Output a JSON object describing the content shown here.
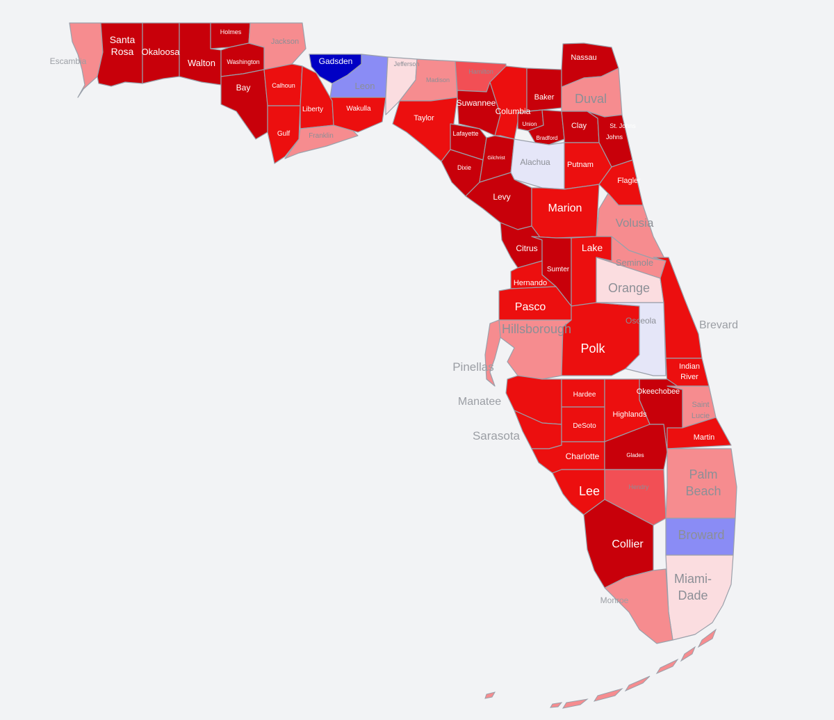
{
  "colors": {
    "background": "#f2f3f5",
    "dark_red": "#c8000a",
    "red": "#ec0f0f",
    "medium_red": "#f24f55",
    "light_red": "#f68c8f",
    "pale_red": "#fbdde0",
    "pale_blue": "#e5e6f8",
    "light_blue": "#8a8cf5",
    "dark_blue": "#0000c4",
    "label_on_dark": "#ffffff",
    "label_on_light": "#8c8f96"
  },
  "counties": {
    "escambia": "Escambia",
    "santa_rosa": [
      "Santa",
      "Rosa"
    ],
    "okaloosa": "Okaloosa",
    "walton": "Walton",
    "holmes": "Holmes",
    "washington": "Washington",
    "jackson": "Jackson",
    "bay": "Bay",
    "calhoun": "Calhoun",
    "gulf": "Gulf",
    "liberty": "Liberty",
    "franklin": "Franklin",
    "gadsden": "Gadsden",
    "leon": "Leon",
    "wakulla": "Wakulla",
    "jefferson": "Jefferson",
    "madison": "Madison",
    "hamilton": "Hamilton",
    "taylor": "Taylor",
    "suwannee": "Suwannee",
    "lafayette": "Lafayette",
    "columbia": "Columbia",
    "baker": "Baker",
    "nassau": "Nassau",
    "duval": "Duval",
    "union": "Union",
    "bradford": "Bradford",
    "clay": "Clay",
    "st_johns": [
      "St. Johns",
      "Johns"
    ],
    "dixie": "Dixie",
    "gilchrist": "Gilchrist",
    "alachua": "Alachua",
    "putnam": "Putnam",
    "flagler": "Flagler",
    "levy": "Levy",
    "marion": "Marion",
    "volusia": "Volusia",
    "citrus": "Citrus",
    "sumter": "Sumter",
    "lake": "Lake",
    "seminole": "Seminole",
    "hernando": "Hernando",
    "orange": "Orange",
    "pasco": "Pasco",
    "hillsborough": "Hillsborough",
    "pinellas": "Pinellas",
    "polk": "Polk",
    "osceola": "Osceola",
    "brevard": "Brevard",
    "indian_river": [
      "Indian",
      "River"
    ],
    "manatee": "Manatee",
    "hardee": "Hardee",
    "okeechobee": "Okeechobee",
    "st_lucie": [
      "Saint",
      "Lucie"
    ],
    "sarasota": "Sarasota",
    "desoto": "DeSoto",
    "highlands": "Highlands",
    "martin": "Martin",
    "charlotte": "Charlotte",
    "glades": "Glades",
    "palm_beach": [
      "Palm",
      "Beach"
    ],
    "lee": "Lee",
    "hendry": "Hendry",
    "broward": "Broward",
    "collier": "Collier",
    "miami_dade": [
      "Miami-",
      "Dade"
    ],
    "monroe": "Monroe"
  }
}
